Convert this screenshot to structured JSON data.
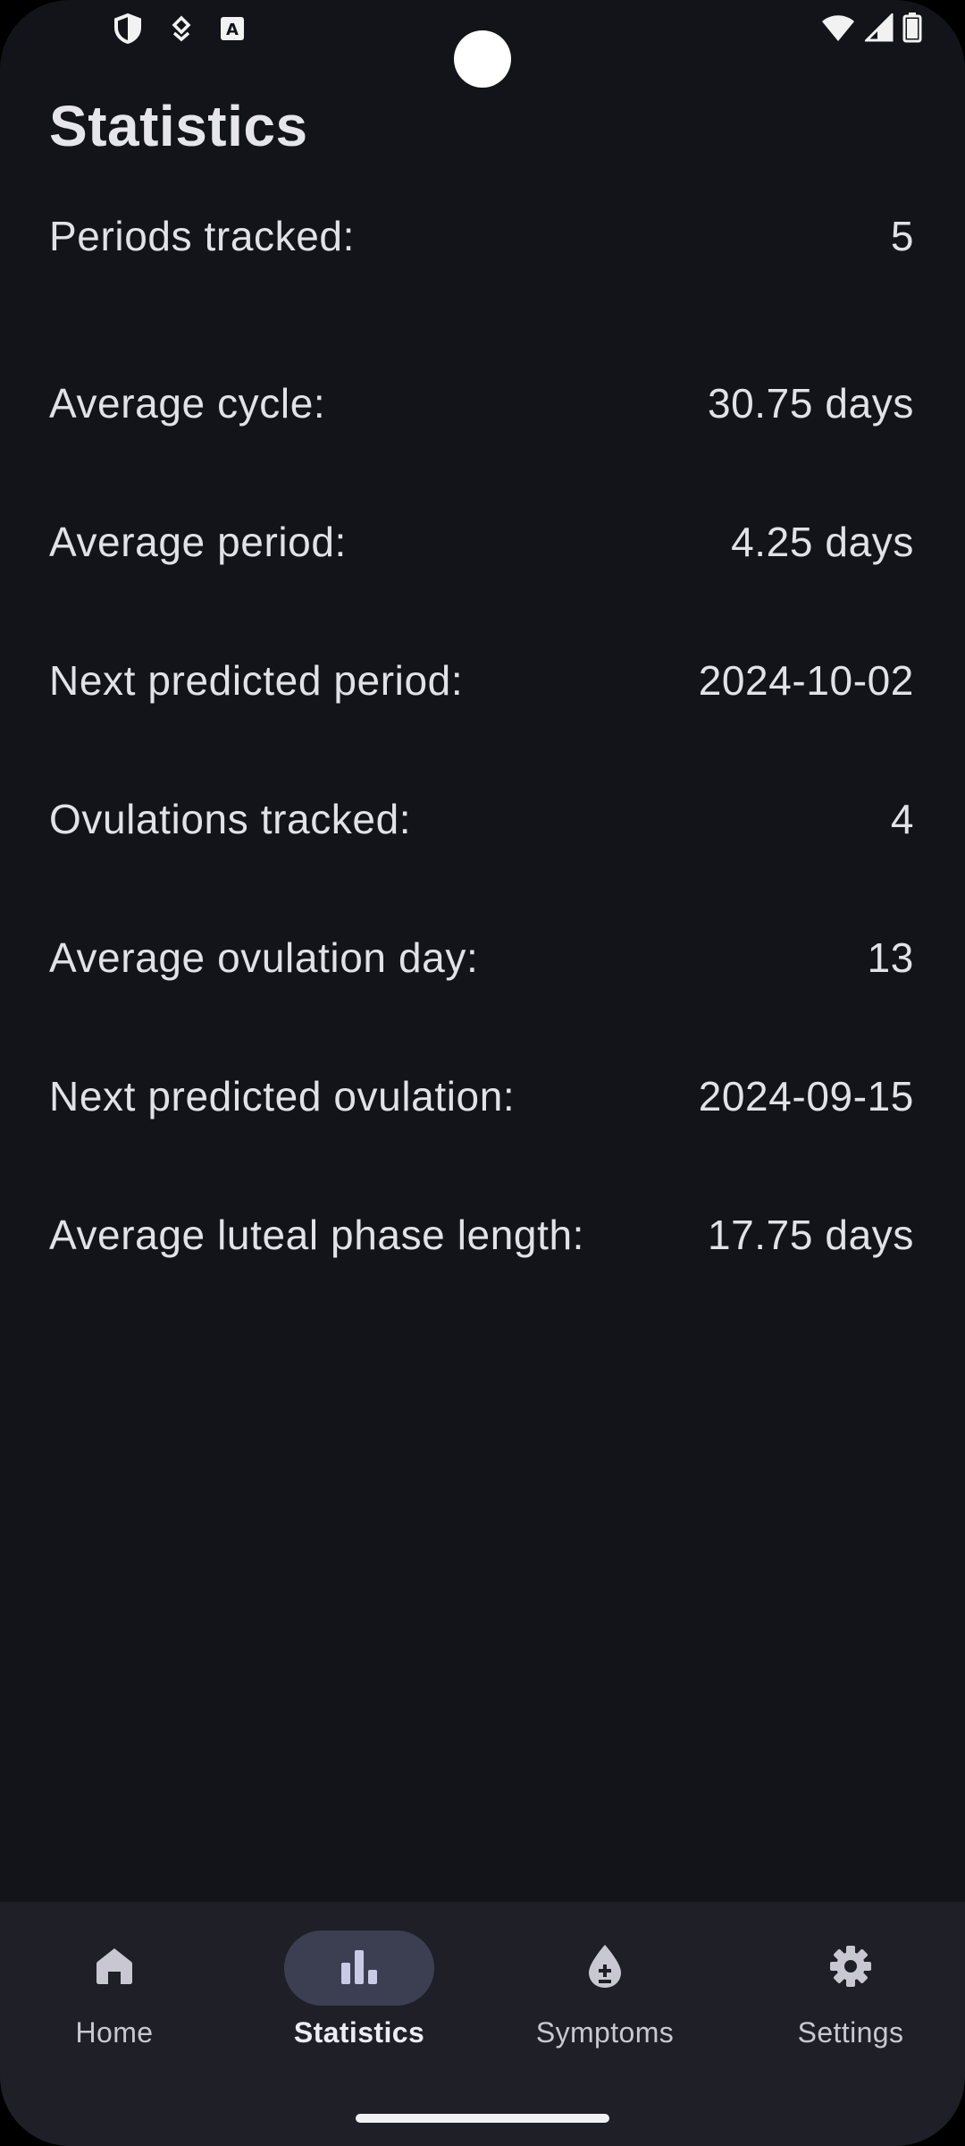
{
  "status_bar": {
    "left_icons": [
      "shield-icon",
      "vpn-key-icon",
      "text-a-icon"
    ],
    "right_icons": [
      "wifi-icon",
      "signal-icon",
      "battery-icon"
    ]
  },
  "page": {
    "title": "Statistics"
  },
  "stats": [
    {
      "label": "Periods tracked:",
      "value": "5"
    },
    {
      "label": "Average cycle:",
      "value": "30.75 days"
    },
    {
      "label": "Average period:",
      "value": "4.25 days"
    },
    {
      "label": "Next predicted period:",
      "value": "2024-10-02"
    },
    {
      "label": "Ovulations tracked:",
      "value": "4"
    },
    {
      "label": "Average ovulation day:",
      "value": "13"
    },
    {
      "label": "Next predicted ovulation:",
      "value": "2024-09-15"
    },
    {
      "label": "Average luteal phase length:",
      "value": "17.75 days"
    }
  ],
  "nav": {
    "items": [
      {
        "label": "Home",
        "icon": "home-icon"
      },
      {
        "label": "Statistics",
        "icon": "bar-chart-icon",
        "active": true
      },
      {
        "label": "Symptoms",
        "icon": "drop-plus-minus-icon"
      },
      {
        "label": "Settings",
        "icon": "gear-icon"
      }
    ]
  },
  "colors": {
    "background": "#13141a",
    "nav_background": "#1e1f27",
    "active_indicator": "#3c3f51",
    "text": "#e2e1e8"
  }
}
